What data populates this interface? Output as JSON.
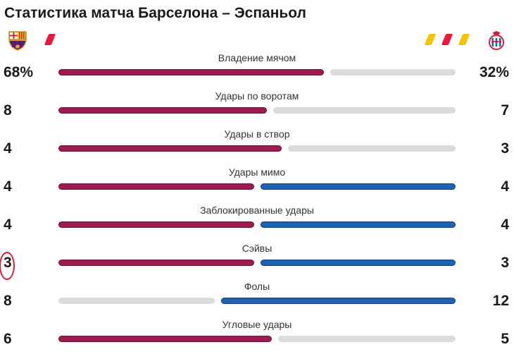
{
  "header": {
    "title": "Статистика матча Барселона – Эспаньол"
  },
  "teams": {
    "home": {
      "crest_icon": "barcelona-crest-icon",
      "cards": [
        "red"
      ]
    },
    "away": {
      "crest_icon": "espanyol-crest-icon",
      "cards": [
        "yellow",
        "red",
        "yellow"
      ]
    }
  },
  "colors": {
    "home_bar": "#9e1b4f",
    "away_bar": "#1f62b4",
    "neutral_bar": "#dcdcdc",
    "yellow_card": "#f4c400",
    "red_card": "#e8193c",
    "annotation": "#d2202f"
  },
  "stats": [
    {
      "label": "Владение мячом",
      "home": "68%",
      "away": "32%",
      "home_value": 68,
      "away_value": 32,
      "home_color": "home",
      "away_color": "grey"
    },
    {
      "label": "Удары по воротам",
      "home": "8",
      "away": "7",
      "home_value": 8,
      "away_value": 7,
      "home_color": "home",
      "away_color": "grey"
    },
    {
      "label": "Удары в створ",
      "home": "4",
      "away": "3",
      "home_value": 4,
      "away_value": 3,
      "home_color": "home",
      "away_color": "grey"
    },
    {
      "label": "Удары мимо",
      "home": "4",
      "away": "4",
      "home_value": 4,
      "away_value": 4,
      "home_color": "home",
      "away_color": "away"
    },
    {
      "label": "Заблокированные удары",
      "home": "4",
      "away": "4",
      "home_value": 4,
      "away_value": 4,
      "home_color": "home",
      "away_color": "away"
    },
    {
      "label": "Сэйвы",
      "home": "3",
      "away": "3",
      "home_value": 3,
      "away_value": 3,
      "home_color": "home",
      "away_color": "away"
    },
    {
      "label": "Фолы",
      "home": "8",
      "away": "12",
      "home_value": 8,
      "away_value": 12,
      "home_color": "grey",
      "away_color": "away"
    },
    {
      "label": "Угловые удары",
      "home": "6",
      "away": "5",
      "home_value": 6,
      "away_value": 5,
      "home_color": "home",
      "away_color": "grey"
    }
  ]
}
